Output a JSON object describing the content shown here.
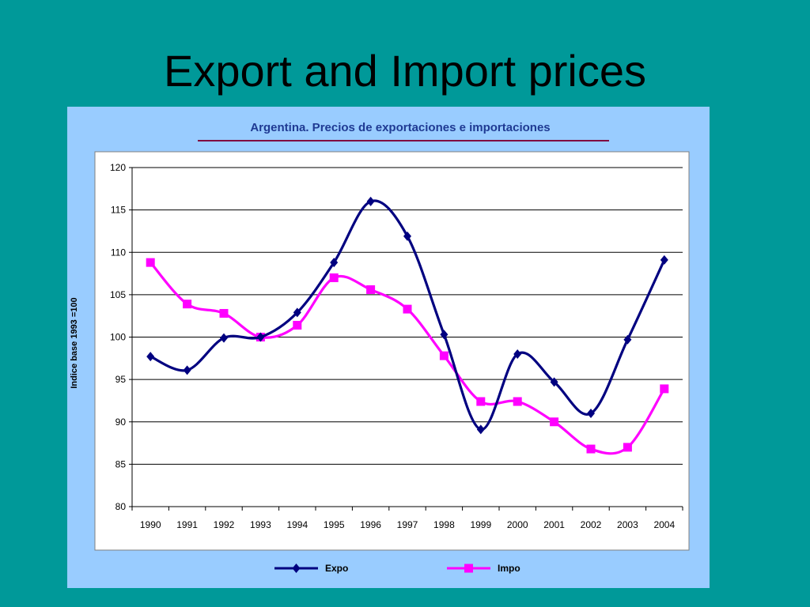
{
  "slide": {
    "title": "Export and Import prices"
  },
  "chart_data": {
    "type": "line",
    "title": "Argentina. Precios de exportaciones e importaciones",
    "xlabel": "",
    "ylabel": "Indice base 1993 =100",
    "categories": [
      "1990",
      "1991",
      "1992",
      "1993",
      "1994",
      "1995",
      "1996",
      "1997",
      "1998",
      "1999",
      "2000",
      "2001",
      "2002",
      "2003",
      "2004"
    ],
    "yticks": [
      "80",
      "85",
      "90",
      "95",
      "100",
      "105",
      "110",
      "115",
      "120"
    ],
    "ylim": [
      80,
      120
    ],
    "grid": true,
    "legend_position": "bottom",
    "series": [
      {
        "name": "Expo",
        "color": "#000080",
        "marker": "diamond",
        "values": [
          97.7,
          96.1,
          99.9,
          100.0,
          102.9,
          108.8,
          116.0,
          111.9,
          100.3,
          89.1,
          98.0,
          94.7,
          91.0,
          99.7,
          109.1
        ]
      },
      {
        "name": "Impo",
        "color": "#FF00FF",
        "marker": "square",
        "values": [
          108.8,
          103.9,
          102.8,
          100.0,
          101.4,
          107.0,
          105.6,
          103.3,
          97.8,
          92.4,
          92.4,
          90.0,
          86.8,
          87.0,
          93.9
        ]
      }
    ]
  }
}
